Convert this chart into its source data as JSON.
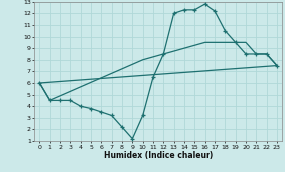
{
  "xlabel": "Humidex (Indice chaleur)",
  "xlim": [
    -0.5,
    23.5
  ],
  "ylim": [
    1,
    13
  ],
  "xticks": [
    0,
    1,
    2,
    3,
    4,
    5,
    6,
    7,
    8,
    9,
    10,
    11,
    12,
    13,
    14,
    15,
    16,
    17,
    18,
    19,
    20,
    21,
    22,
    23
  ],
  "yticks": [
    1,
    2,
    3,
    4,
    5,
    6,
    7,
    8,
    9,
    10,
    11,
    12,
    13
  ],
  "bg_color": "#cce9e9",
  "line_color": "#1e7070",
  "grid_color": "#b0d8d8",
  "line1_x": [
    0,
    1,
    2,
    3,
    4,
    5,
    6,
    7,
    8,
    9,
    10,
    11,
    12,
    13,
    14,
    15,
    16,
    17,
    18,
    19,
    20,
    21,
    22,
    23
  ],
  "line1_y": [
    6,
    4.5,
    4.5,
    4.5,
    4.0,
    3.8,
    3.5,
    3.2,
    2.2,
    1.2,
    3.2,
    6.5,
    8.5,
    12.0,
    12.3,
    12.3,
    12.8,
    12.2,
    10.5,
    9.5,
    8.5,
    8.5,
    8.5,
    7.5
  ],
  "line2_x": [
    0,
    23
  ],
  "line2_y": [
    6,
    7.5
  ],
  "line3_x": [
    0,
    1,
    10,
    16,
    20,
    21,
    22,
    23
  ],
  "line3_y": [
    6,
    4.5,
    8.0,
    9.5,
    9.5,
    8.5,
    8.5,
    7.5
  ]
}
